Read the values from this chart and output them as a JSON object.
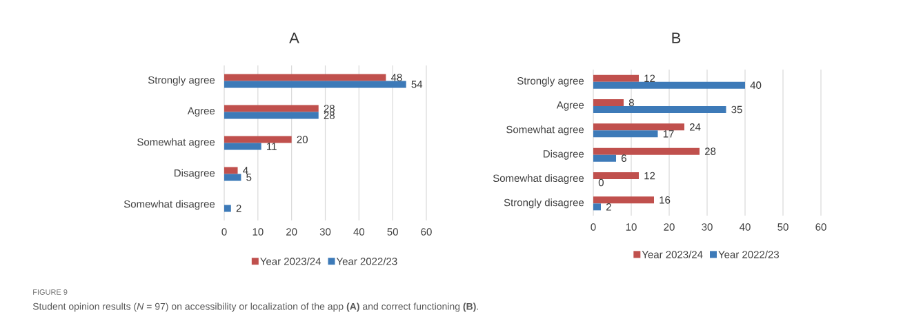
{
  "chart_data": [
    {
      "type": "bar",
      "orientation": "horizontal",
      "title": "A",
      "categories": [
        "Strongly agree",
        "Agree",
        "Somewhat agree",
        "Disagree",
        "Somewhat disagree"
      ],
      "series": [
        {
          "name": "Year 2023/24",
          "color": "#c0504d",
          "values": [
            48,
            28,
            20,
            4,
            null
          ]
        },
        {
          "name": "Year 2022/23",
          "color": "#3d7ab8",
          "values": [
            54,
            28,
            11,
            5,
            2
          ]
        }
      ],
      "xlim": [
        0,
        60
      ],
      "xticks": [
        0,
        10,
        20,
        30,
        40,
        50,
        60
      ],
      "grid": "x",
      "legend": "bottom",
      "data_labels": true,
      "annotations": [
        "FIGURE 9",
        "Student opinion results (*N* = 97) on accessibility or localization of the app **(A)** and correct functioning **(B)**."
      ]
    },
    {
      "type": "bar",
      "orientation": "horizontal",
      "title": "B",
      "categories": [
        "Strongly agree",
        "Agree",
        "Somewhat agree",
        "Disagree",
        "Somewhat disagree",
        "Strongly disagree"
      ],
      "series": [
        {
          "name": "Year 2023/24",
          "color": "#c0504d",
          "values": [
            12,
            8,
            24,
            28,
            12,
            16
          ]
        },
        {
          "name": "Year 2022/23",
          "color": "#3d7ab8",
          "values": [
            40,
            35,
            17,
            6,
            0,
            2
          ]
        }
      ],
      "xlim": [
        0,
        60
      ],
      "xticks": [
        0,
        10,
        20,
        30,
        40,
        50,
        60
      ],
      "grid": "x",
      "legend": "bottom",
      "data_labels": true
    }
  ]
}
